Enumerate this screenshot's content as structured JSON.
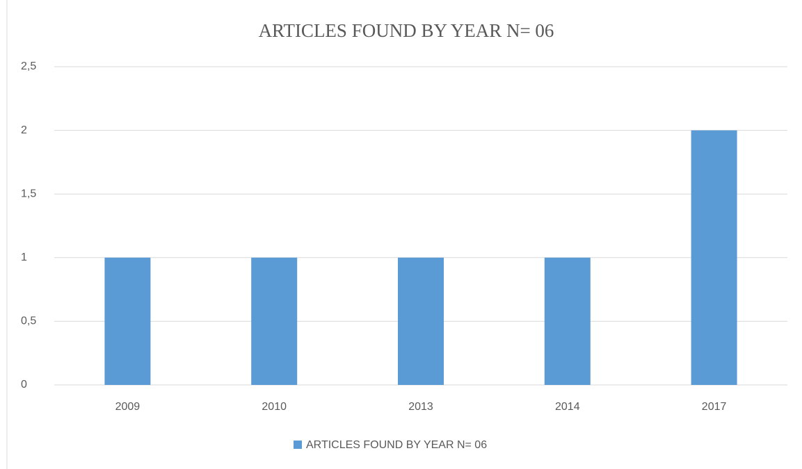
{
  "chart_data": {
    "type": "bar",
    "title": "ARTICLES FOUND BY YEAR N= 06",
    "categories": [
      "2009",
      "2010",
      "2013",
      "2014",
      "2017"
    ],
    "series": [
      {
        "name": "ARTICLES FOUND BY YEAR N= 06",
        "color": "#5b9bd5",
        "values": [
          1,
          1,
          1,
          1,
          2
        ]
      }
    ],
    "ylim": [
      0,
      2.5
    ],
    "yticks": [
      0,
      {
        "value": 0.5,
        "label": "0,5"
      },
      1,
      {
        "value": 1.5,
        "label": "1,5"
      },
      2,
      {
        "value": 2.5,
        "label": "2,5"
      }
    ],
    "grid": true,
    "legend": "bottom"
  }
}
